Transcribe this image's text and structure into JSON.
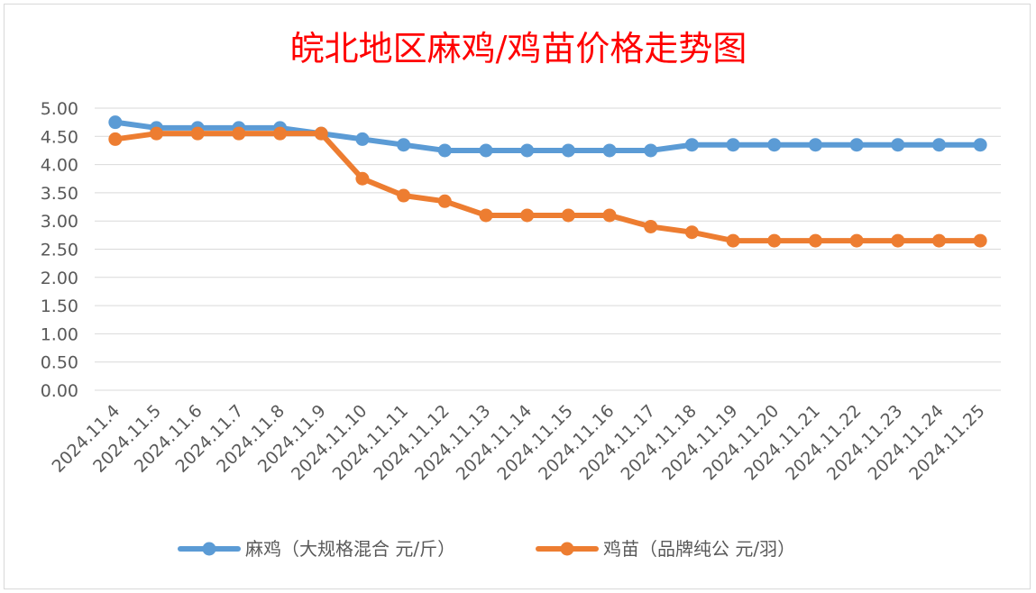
{
  "chart_data": {
    "type": "line",
    "title": "皖北地区麻鸡/鸡苗价格走势图",
    "x": [
      "2024.11.4",
      "2024.11.5",
      "2024.11.6",
      "2024.11.7",
      "2024.11.8",
      "2024.11.9",
      "2024.11.10",
      "2024.11.11",
      "2024.11.12",
      "2024.11.13",
      "2024.11.14",
      "2024.11.15",
      "2024.11.16",
      "2024.11.17",
      "2024.11.18",
      "2024.11.19",
      "2024.11.20",
      "2024.11.21",
      "2024.11.22",
      "2024.11.23",
      "2024.11.24",
      "2024.11.25"
    ],
    "y_ticks": [
      "0.00",
      "0.50",
      "1.00",
      "1.50",
      "2.00",
      "2.50",
      "3.00",
      "3.50",
      "4.00",
      "4.50",
      "5.00"
    ],
    "ylim": [
      0,
      5
    ],
    "grid": true,
    "legend_position": "bottom",
    "series": [
      {
        "name": "麻鸡（大规格混合 元/斤）",
        "color": "#5b9bd5",
        "values": [
          4.75,
          4.65,
          4.65,
          4.65,
          4.65,
          4.55,
          4.45,
          4.35,
          4.25,
          4.25,
          4.25,
          4.25,
          4.25,
          4.25,
          4.35,
          4.35,
          4.35,
          4.35,
          4.35,
          4.35,
          4.35,
          4.35
        ]
      },
      {
        "name": "鸡苗（品牌纯公 元/羽）",
        "color": "#ed7d31",
        "values": [
          4.45,
          4.55,
          4.55,
          4.55,
          4.55,
          4.55,
          3.75,
          3.45,
          3.35,
          3.1,
          3.1,
          3.1,
          3.1,
          2.9,
          2.8,
          2.65,
          2.65,
          2.65,
          2.65,
          2.65,
          2.65,
          2.65
        ]
      }
    ]
  }
}
